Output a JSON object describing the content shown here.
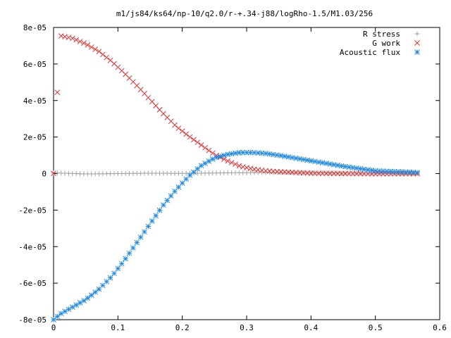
{
  "chart_data": {
    "type": "scatter",
    "title": "m1/js84/ks64/np-10/q2.0/r-+.34-j88/logRho-1.5/M1.03/256",
    "xlabel": "",
    "ylabel": "",
    "xlim": [
      0,
      0.6
    ],
    "ylim": [
      -8e-05,
      8e-05
    ],
    "xticks": [
      0,
      0.1,
      0.2,
      0.3,
      0.4,
      0.5,
      0.6
    ],
    "xtick_labels": [
      "0",
      "0.1",
      "0.2",
      "0.3",
      "0.4",
      "0.5",
      "0.6"
    ],
    "yticks": [
      -8e-05,
      -6e-05,
      -4e-05,
      -2e-05,
      0,
      2e-05,
      4e-05,
      6e-05,
      8e-05
    ],
    "ytick_labels": [
      "-8e-05",
      "-6e-05",
      "-4e-05",
      "-2e-05",
      "0",
      "2e-05",
      "4e-05",
      "6e-05",
      "8e-05"
    ],
    "grid": false,
    "legend_position": "top-right",
    "series": [
      {
        "name": "R stress",
        "marker": "plus",
        "color": "#a0a0a0",
        "x": [
          0,
          0.05,
          0.1,
          0.15,
          0.2,
          0.25,
          0.3,
          0.35,
          0.4,
          0.45,
          0.5,
          0.55,
          0.565
        ],
        "y": [
          4e-07,
          -2e-07,
          0,
          2e-07,
          1e-07,
          3e-07,
          5e-07,
          6e-07,
          4e-07,
          2e-07,
          1e-07,
          0,
          0
        ]
      },
      {
        "name": "G work",
        "marker": "cross",
        "color": "#e03030",
        "x": [
          0,
          0.01,
          0.03,
          0.05,
          0.07,
          0.09,
          0.11,
          0.13,
          0.15,
          0.17,
          0.19,
          0.21,
          0.23,
          0.25,
          0.27,
          0.29,
          0.31,
          0.33,
          0.35,
          0.4,
          0.45,
          0.5,
          0.565
        ],
        "y": [
          1e-07,
          7.55e-05,
          7.4e-05,
          7.1e-05,
          6.7e-05,
          6.15e-05,
          5.5e-05,
          4.8e-05,
          4.05e-05,
          3.3e-05,
          2.6e-05,
          2.05e-05,
          1.55e-05,
          1.05e-05,
          7e-06,
          4e-06,
          2.5e-06,
          1.5e-06,
          1e-06,
          2e-07,
          0,
          -1e-07,
          -1e-07
        ]
      },
      {
        "name": "Acoustic flux",
        "marker": "star",
        "color": "#1e88e0",
        "x": [
          0,
          0.01,
          0.03,
          0.05,
          0.07,
          0.09,
          0.11,
          0.13,
          0.15,
          0.17,
          0.19,
          0.21,
          0.23,
          0.25,
          0.27,
          0.29,
          0.31,
          0.33,
          0.35,
          0.4,
          0.45,
          0.5,
          0.565
        ],
        "y": [
          -8e-05,
          -7.7e-05,
          -7.3e-05,
          -6.9e-05,
          -6.35e-05,
          -5.65e-05,
          -4.75e-05,
          -3.75e-05,
          -2.75e-05,
          -1.75e-05,
          -9e-06,
          -1.5e-06,
          4.5e-06,
          8.5e-06,
          1.05e-05,
          1.15e-05,
          1.15e-05,
          1.1e-05,
          1e-05,
          7e-06,
          4e-06,
          1.5e-06,
          6e-07
        ]
      }
    ]
  }
}
